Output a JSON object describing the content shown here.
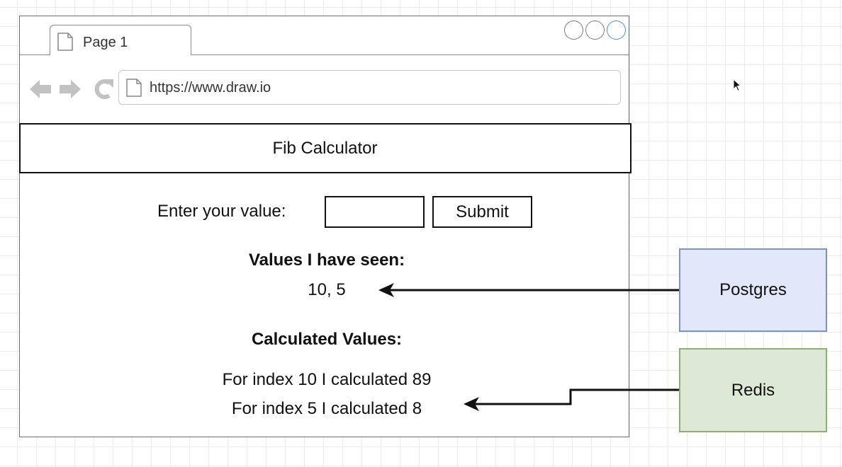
{
  "browser": {
    "tab_title": "Page 1",
    "url": "https://www.draw.io",
    "icons": [
      "document-icon",
      "back-arrow-icon",
      "forward-arrow-icon",
      "reload-icon"
    ]
  },
  "app": {
    "title": "Fib Calculator",
    "input_label": "Enter your value:",
    "input_value": "",
    "submit_label": "Submit",
    "seen_heading": "Values I have seen:",
    "seen_values": "10, 5",
    "calculated_heading": "Calculated Values:",
    "calculated_rows": [
      "For index 10 I calculated 89",
      "For index 5 I calculated 8"
    ]
  },
  "services": {
    "postgres": {
      "label": "Postgres",
      "fill": "#e2e7fa",
      "stroke": "#7a93bf"
    },
    "redis": {
      "label": "Redis",
      "fill": "#dde8d5",
      "stroke": "#90ac78"
    }
  },
  "colors": {
    "grid": "#ececec",
    "window_border": "#6e6e6e",
    "active_control": "#4a90d9"
  }
}
